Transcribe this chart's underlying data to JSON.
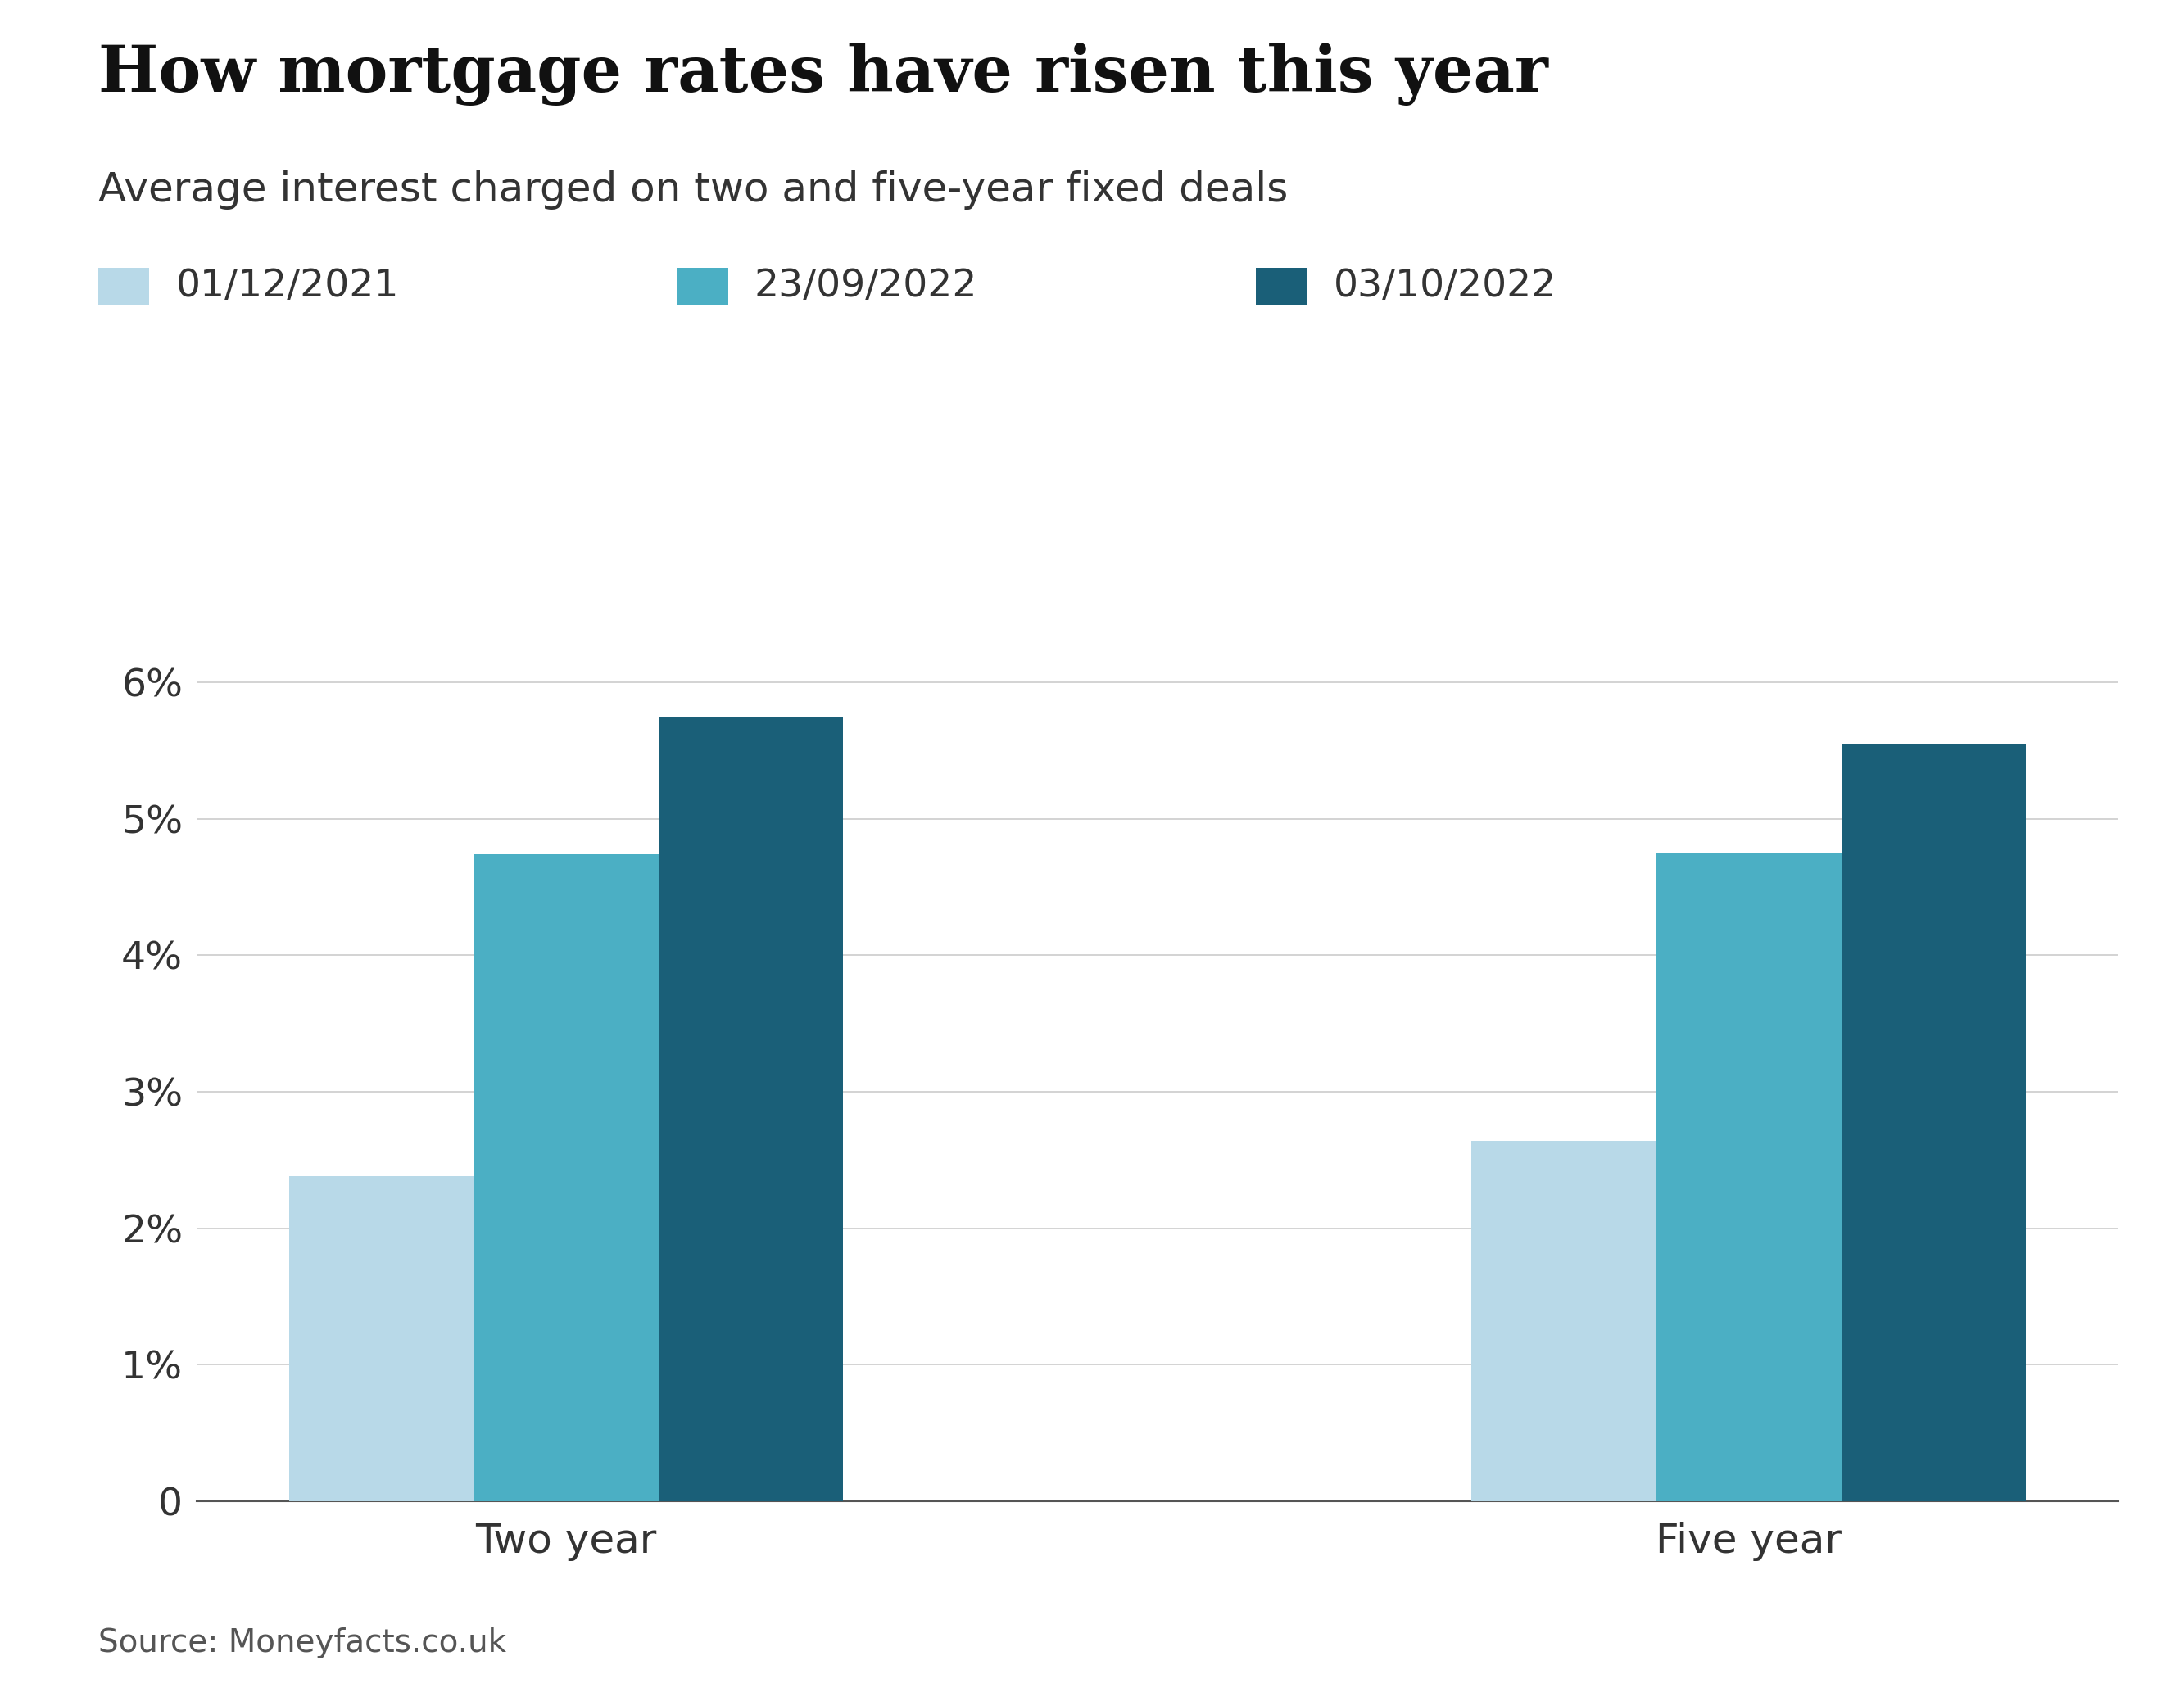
{
  "title": "How mortgage rates have risen this year",
  "subtitle": "Average interest charged on two and five-year fixed deals",
  "source": "Source: Moneyfacts.co.uk",
  "legend_labels": [
    "01/12/2021",
    "23/09/2022",
    "03/10/2022"
  ],
  "legend_colors": [
    "#b8d9e8",
    "#4bafc4",
    "#1a5f78"
  ],
  "categories": [
    "Two year",
    "Five year"
  ],
  "values": {
    "01/12/2021": [
      2.38,
      2.64
    ],
    "23/09/2022": [
      4.74,
      4.75
    ],
    "03/10/2022": [
      5.75,
      5.55
    ]
  },
  "ylim": [
    0,
    6.5
  ],
  "yticks": [
    0,
    1,
    2,
    3,
    4,
    5,
    6
  ],
  "ytick_labels": [
    "0",
    "1%",
    "2%",
    "3%",
    "4%",
    "5%",
    "6%"
  ],
  "background_color": "#ffffff",
  "grid_color": "#cccccc",
  "bar_width": 0.25,
  "title_fontsize": 56,
  "subtitle_fontsize": 36,
  "tick_fontsize": 34,
  "legend_fontsize": 34,
  "source_fontsize": 28,
  "category_fontsize": 36
}
